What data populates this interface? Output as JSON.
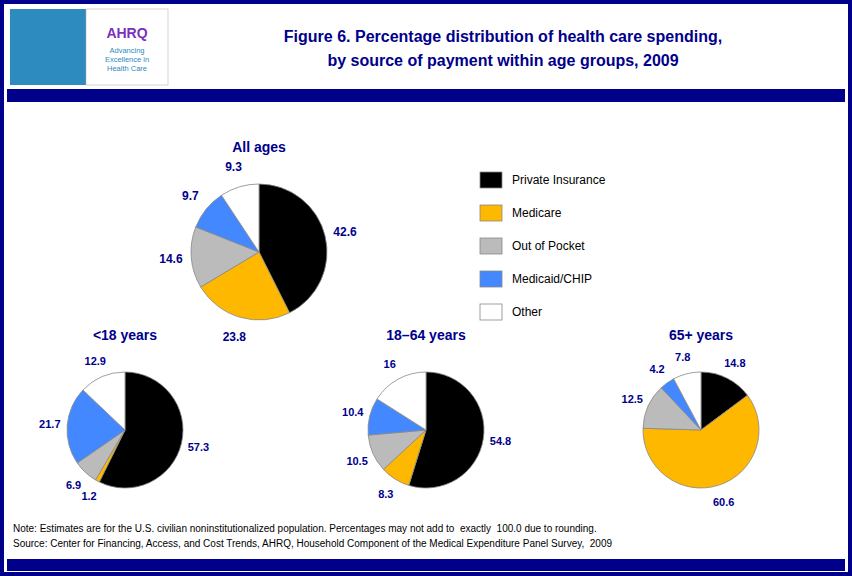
{
  "chart_data": {
    "type": "pie",
    "title": "Figure 6. Percentage distribution of health care spending,",
    "subtitle": "by source of payment within age groups, 2009",
    "categories": [
      "Private Insurance",
      "Medicare",
      "Out of Pocket",
      "Medicaid/CHIP",
      "Other"
    ],
    "colors": [
      "#000000",
      "#FFB800",
      "#BBBBBB",
      "#4488FF",
      "#FFFFFF"
    ],
    "series": [
      {
        "name": "All ages",
        "values": [
          42.6,
          23.8,
          14.6,
          9.7,
          9.3
        ]
      },
      {
        "name": "<18 years",
        "values": [
          57.3,
          1.2,
          6.9,
          21.7,
          12.9
        ]
      },
      {
        "name": "18–64 years",
        "values": [
          54.8,
          8.3,
          10.5,
          10.4,
          16.0
        ]
      },
      {
        "name": "65+ years",
        "values": [
          14.8,
          60.6,
          12.5,
          4.2,
          7.8
        ]
      }
    ],
    "data_labels": true,
    "legend": "right",
    "annotations": [
      "AHRQ",
      "Advancing\nExcellence in\nHealth Care",
      "Note: Estimates are for the U.S. civilian noninstitutionalized population. Percentages may not add to  exactly  100.0 due to rounding.",
      "Source: Center for Financing, Access, and Cost Trends, AHRQ, Household Component of the Medical Expenditure Panel Survey,  2009"
    ]
  }
}
